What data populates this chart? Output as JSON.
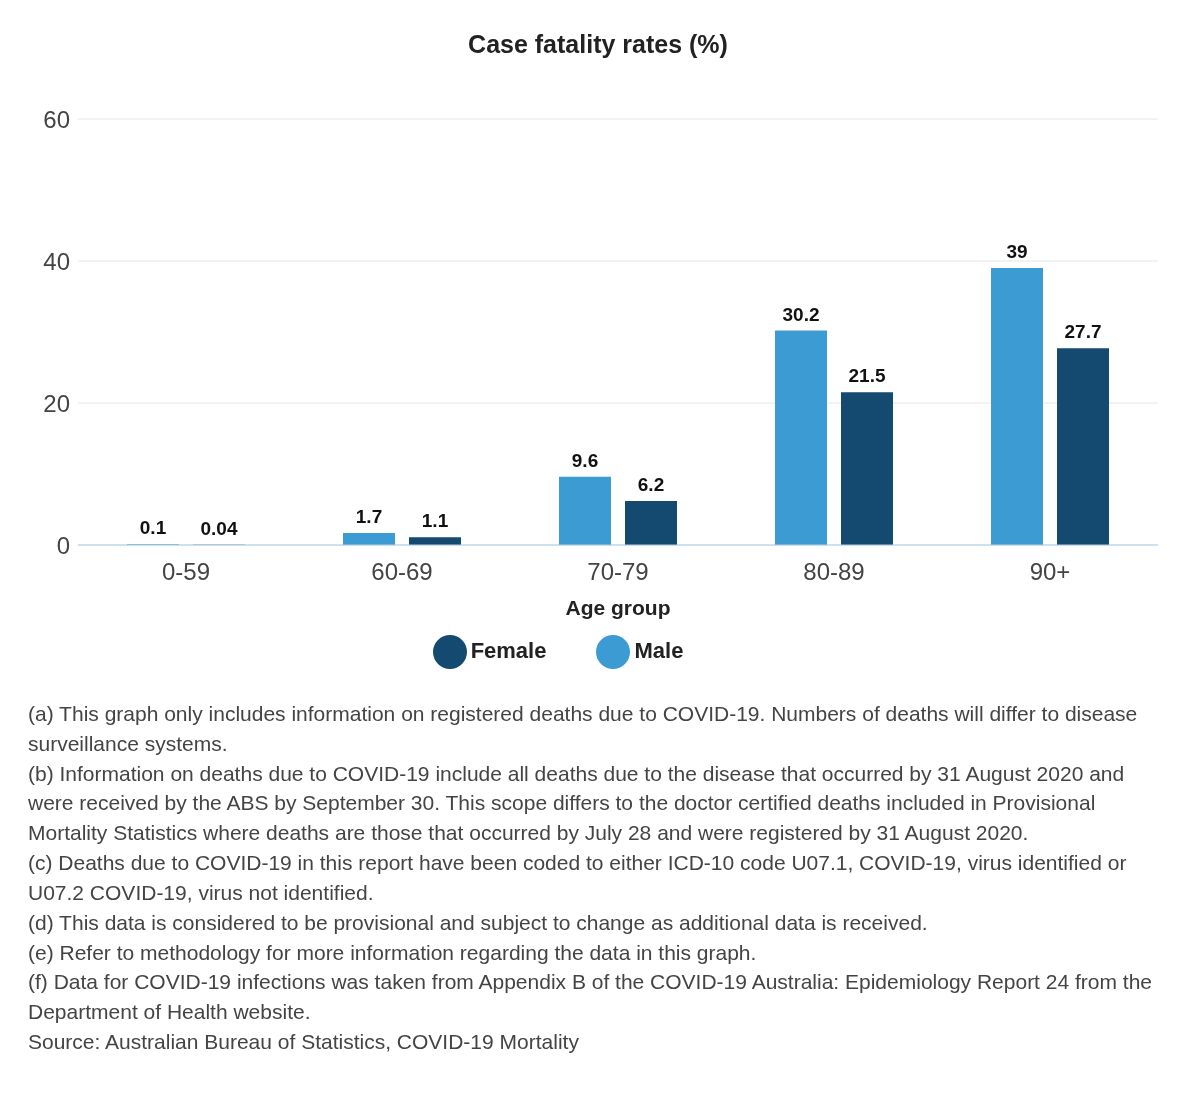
{
  "chart_data": {
    "type": "bar",
    "title": "Case fatality rates (%)",
    "xlabel": "Age group",
    "categories": [
      "0-59",
      "60-69",
      "70-79",
      "80-89",
      "90+"
    ],
    "series": [
      {
        "name": "Male",
        "color": "#3d9bd3",
        "values": [
          0.1,
          1.7,
          9.6,
          30.2,
          39
        ]
      },
      {
        "name": "Female",
        "color": "#154a70",
        "values": [
          0.04,
          1.1,
          6.2,
          21.5,
          27.7
        ]
      }
    ],
    "ylim": [
      0,
      60
    ],
    "yticks": [
      0,
      20,
      40,
      60
    ],
    "grid": "y",
    "legend": "bottom",
    "data_labels": true,
    "annotations": [
      "(a)   This graph only includes information on registered deaths due to COVID-19. Numbers of deaths will differ to disease surveillance systems.",
      "(b)   Information on deaths due to COVID-19 include all deaths due to the disease that occurred by 31 August 2020 and were received by the ABS by September 30. This scope differs to the doctor certified deaths included in Provisional Mortality Statistics where deaths are those that occurred by July 28 and were registered by 31 August 2020.",
      "(c)   Deaths due to COVID-19 in this report have been coded to either ICD-10 code U07.1, COVID-19, virus identified or U07.2 COVID-19, virus not identified.",
      "(d)   This data is considered to be provisional and subject to change as additional data is received.",
      "(e)   Refer to methodology for more information regarding the data in this graph.",
      "(f)    Data for COVID-19 infections was taken from Appendix B of the COVID-19 Australia: Epidemiology Report 24 from the Department of Health website.",
      "Source: Australian Bureau of Statistics, COVID-19 Mortality"
    ]
  }
}
